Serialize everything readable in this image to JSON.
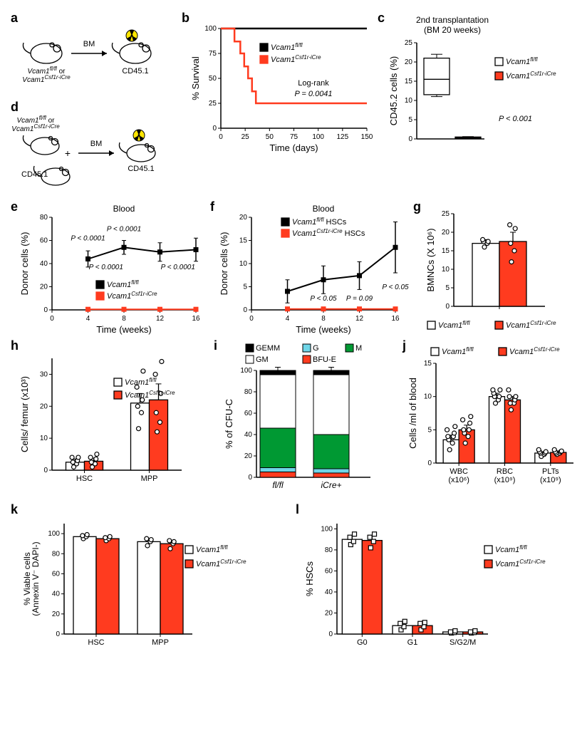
{
  "colors": {
    "flfl": "#ffffff",
    "icre": "#ff3b1f",
    "black": "#000000",
    "gemm": "#000000",
    "gm": "#ffffff",
    "g": "#6fd6e8",
    "m": "#009933",
    "bfue": "#ff3b1f"
  },
  "legend_flfl": "Vcam1",
  "legend_flfl_sup": "fl/fl",
  "legend_icre": "Vcam1",
  "legend_icre_sup": "Csf1r-iCre",
  "panel_a": {
    "label1": "Vcam1",
    "label1_sup": "fl/fl",
    "label_or": " or",
    "label2": "Vcam1",
    "label2_sup": "Csf1r-iCre",
    "bm": "BM",
    "cd451": "CD45.1"
  },
  "panel_b": {
    "ylabel": "% Survival",
    "xlabel": "Time (days)",
    "xlim": [
      0,
      150
    ],
    "xtick": [
      0,
      25,
      50,
      75,
      100,
      125,
      150
    ],
    "ylim": [
      0,
      100
    ],
    "ytick": [
      0,
      25,
      50,
      75,
      100
    ],
    "logrank": "Log-rank",
    "pval": "P = 0.0041",
    "series": {
      "flfl": [
        [
          0,
          100
        ],
        [
          150,
          100
        ]
      ],
      "icre": [
        [
          0,
          100
        ],
        [
          12,
          100
        ],
        [
          14,
          87
        ],
        [
          18,
          87
        ],
        [
          20,
          75
        ],
        [
          24,
          62
        ],
        [
          28,
          50
        ],
        [
          32,
          37
        ],
        [
          36,
          25
        ],
        [
          150,
          25
        ]
      ]
    }
  },
  "panel_c": {
    "title1": "2nd transplantation",
    "title2": "(BM 20 weeks)",
    "ylabel": "CD45.2 cells (%)",
    "ylim": [
      0,
      25
    ],
    "ytick": [
      0,
      5,
      10,
      15,
      20,
      25
    ],
    "pval": "P < 0.001",
    "box_flfl": {
      "min": 11,
      "q1": 11.5,
      "med": 15.5,
      "q3": 21,
      "max": 22
    },
    "box_icre": {
      "min": 0.1,
      "q1": 0.1,
      "med": 0.3,
      "q3": 0.5,
      "max": 0.6
    }
  },
  "panel_d": {
    "bm": "BM",
    "cd451": "CD45.1",
    "plus": "+"
  },
  "panel_e": {
    "title": "Blood",
    "ylabel": "Donor cells (%)",
    "xlabel": "Time (weeks)",
    "xlim": [
      0,
      16
    ],
    "xtick": [
      0,
      4,
      8,
      12,
      16
    ],
    "ylim": [
      0,
      80
    ],
    "ytick": [
      0,
      20,
      40,
      60,
      80
    ],
    "flfl": [
      [
        4,
        44,
        7
      ],
      [
        8,
        54,
        6
      ],
      [
        12,
        50,
        8
      ],
      [
        16,
        52,
        10
      ]
    ],
    "icre": [
      [
        4,
        0.5,
        0.5
      ],
      [
        8,
        0.5,
        0.5
      ],
      [
        12,
        0.5,
        0.5
      ],
      [
        16,
        0.5,
        0.5
      ]
    ],
    "p1": "P < 0.0001",
    "p2": "P < 0.0001",
    "p3": "P < 0.0001",
    "p4": "P < 0.0001"
  },
  "panel_f": {
    "title": "Blood",
    "ylabel": "Donor cells (%)",
    "xlabel": "Time (weeks)",
    "xlim": [
      0,
      16
    ],
    "xtick": [
      0,
      4,
      8,
      12,
      16
    ],
    "ylim": [
      0,
      20
    ],
    "ytick": [
      0,
      5,
      10,
      15,
      20
    ],
    "flfl": [
      [
        4,
        4,
        2.5
      ],
      [
        8,
        6.5,
        3
      ],
      [
        12,
        7.4,
        3
      ],
      [
        16,
        13.5,
        5.5
      ]
    ],
    "icre": [
      [
        4,
        0.2,
        0.2
      ],
      [
        8,
        0.2,
        0.2
      ],
      [
        12,
        0.2,
        0.2
      ],
      [
        16,
        0.2,
        0.2
      ]
    ],
    "leg1": "Vcam1",
    "leg1_sup": "fl/fl",
    "leg1_after": " HSCs",
    "leg2": "Vcam1",
    "leg2_sup": "Csf1r-iCre",
    "leg2_after": " HSCs",
    "p1": "P < 0.05",
    "p2": "P = 0.09",
    "p3": "P < 0.05"
  },
  "panel_g": {
    "ylabel": "BMNCs (X 10⁶)",
    "ylim": [
      0,
      25
    ],
    "ytick": [
      0,
      5,
      10,
      15,
      20,
      25
    ],
    "flfl": {
      "mean": 17,
      "err": 1,
      "pts": [
        16,
        17,
        17.5,
        17.5,
        18
      ]
    },
    "icre": {
      "mean": 17.5,
      "err": 2.5,
      "pts": [
        12,
        15,
        17,
        21,
        22
      ]
    }
  },
  "panel_h": {
    "ylabel": "Cells/ femur (x10³)",
    "ylim": [
      0,
      35
    ],
    "ytick": [
      0,
      10,
      20,
      30
    ],
    "cats": [
      "HSC",
      "MPP"
    ],
    "flfl": [
      {
        "mean": 2.5,
        "err": 1,
        "pts": [
          1,
          2,
          2.5,
          3,
          4,
          4
        ]
      },
      {
        "mean": 21,
        "err": 3,
        "pts": [
          13,
          18,
          20,
          22,
          26,
          31
        ]
      }
    ],
    "icre": [
      {
        "mean": 2.8,
        "err": 1,
        "pts": [
          1,
          2,
          2.5,
          3.5,
          4,
          5
        ]
      },
      {
        "mean": 22,
        "err": 5,
        "pts": [
          12,
          15,
          18,
          24,
          30,
          34
        ]
      }
    ]
  },
  "panel_i": {
    "ylabel": "% of CFU-C",
    "ylim": [
      0,
      100
    ],
    "ytick": [
      0,
      20,
      40,
      60,
      80,
      100
    ],
    "cats": [
      "fl/fl",
      "iCre+"
    ],
    "leg": {
      "gemm": "GEMM",
      "gm": "GM",
      "g": "G",
      "m": "M",
      "bfue": "BFU-E"
    },
    "flfl": {
      "bfue": 5,
      "g": 4,
      "m": 37,
      "gm": 50,
      "gemm": 4
    },
    "icre": {
      "bfue": 4,
      "g": 4,
      "m": 32,
      "gm": 56,
      "gemm": 4
    }
  },
  "panel_j": {
    "ylabel": "Cells /ml of blood",
    "ylim": [
      0,
      15
    ],
    "ytick": [
      0,
      5,
      10,
      15
    ],
    "cats": [
      "WBC\n(x10⁶)",
      "RBC\n(x10⁹)",
      "PLTs\n(x10⁹)"
    ],
    "flfl": [
      {
        "mean": 3.5,
        "err": 0.7,
        "pts": [
          2,
          3,
          3.5,
          4,
          4,
          4.5,
          5,
          5.5
        ]
      },
      {
        "mean": 10,
        "err": 0.5,
        "pts": [
          9,
          9.5,
          10,
          10,
          10.5,
          11,
          11
        ]
      },
      {
        "mean": 1.5,
        "err": 0.2,
        "pts": [
          1,
          1.3,
          1.5,
          1.5,
          1.7,
          1.7,
          2
        ]
      }
    ],
    "icre": [
      {
        "mean": 5,
        "err": 0.7,
        "pts": [
          3,
          4,
          4.5,
          5,
          5,
          6,
          6.5,
          7
        ]
      },
      {
        "mean": 9.5,
        "err": 0.5,
        "pts": [
          8,
          9,
          9,
          9.5,
          10,
          10,
          11
        ]
      },
      {
        "mean": 1.6,
        "err": 0.2,
        "pts": [
          1.3,
          1.5,
          1.5,
          1.7,
          1.7,
          1.8,
          2
        ]
      }
    ]
  },
  "panel_k": {
    "ylabel1": "% Viable cells",
    "ylabel2": "(Annexin V⁻ DAPI-)",
    "ylim": [
      0,
      110
    ],
    "ytick": [
      0,
      20,
      40,
      60,
      80,
      100
    ],
    "cats": [
      "HSC",
      "MPP"
    ],
    "flfl": [
      {
        "mean": 97,
        "err": 2,
        "pts": [
          95,
          97,
          98,
          99
        ]
      },
      {
        "mean": 92,
        "err": 3,
        "pts": [
          88,
          92,
          95,
          94
        ]
      }
    ],
    "icre": [
      {
        "mean": 95,
        "err": 2,
        "pts": [
          93,
          95,
          96,
          97
        ]
      },
      {
        "mean": 90,
        "err": 3,
        "pts": [
          85,
          90,
          93,
          92
        ]
      }
    ]
  },
  "panel_l": {
    "ylabel": "% HSCs",
    "ylim": [
      0,
      105
    ],
    "ytick": [
      0,
      20,
      40,
      60,
      80,
      100
    ],
    "cats": [
      "G0",
      "G1",
      "S/G2/M"
    ],
    "flfl": [
      {
        "mean": 90,
        "err": 3,
        "pts": [
          85,
          88,
          92,
          95
        ]
      },
      {
        "mean": 8,
        "err": 3,
        "pts": [
          4,
          7,
          10,
          12
        ]
      },
      {
        "mean": 2,
        "err": 1,
        "pts": [
          1,
          1.5,
          2,
          3
        ]
      }
    ],
    "icre": [
      {
        "mean": 89,
        "err": 4,
        "pts": [
          82,
          88,
          92,
          95
        ]
      },
      {
        "mean": 8,
        "err": 3,
        "pts": [
          4,
          7,
          10,
          11
        ]
      },
      {
        "mean": 2,
        "err": 1,
        "pts": [
          1,
          1.5,
          2,
          3
        ]
      }
    ]
  }
}
